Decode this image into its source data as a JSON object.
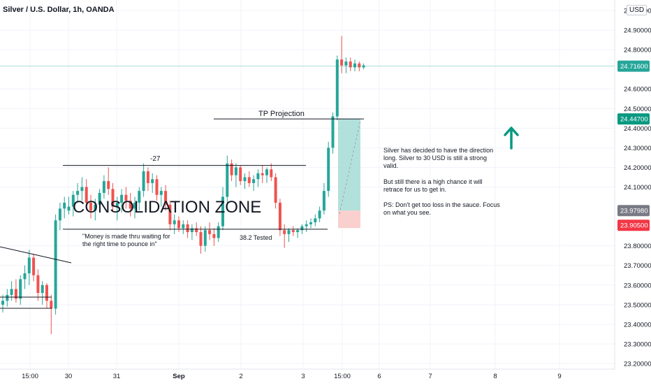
{
  "header": {
    "title": "Silver / U.S. Dollar, 1h, OANDA",
    "currency": "USD"
  },
  "price_axis": {
    "ticks": [
      "25.00000",
      "24.90000",
      "24.80000",
      "24.71600",
      "24.60000",
      "24.50000",
      "24.44700",
      "24.40000",
      "24.30000",
      "24.20000",
      "24.10000",
      "23.97980",
      "23.90500",
      "23.80000",
      "23.70000",
      "23.60000",
      "23.50000",
      "23.40000",
      "23.30000",
      "23.20000"
    ],
    "labels": [
      {
        "text": "24.71600",
        "color": "#26a69a"
      },
      {
        "text": "24.44700",
        "color": "#089981"
      },
      {
        "text": "23.97980",
        "color": "#787b86"
      },
      {
        "text": "23.90500",
        "color": "#f23645"
      }
    ]
  },
  "time_axis": {
    "ticks": [
      "15:00",
      "30",
      "31",
      "Sep",
      "2",
      "3",
      "15:00",
      "6",
      "7",
      "8",
      "9"
    ]
  },
  "annotations": {
    "consolidation": "CONSOLIDATION ZONE",
    "tp_projection": "TP Projection",
    "range_label": "-27",
    "quote": [
      "\"Money is made thru waiting for",
      "the right time to pounce in\""
    ],
    "tested": "38.2 Tested",
    "note": [
      "Silver has decided to have the direction",
      "long. Silver to 30 USD is still a strong",
      "valid.",
      "",
      "But still there is a high chance it will",
      "retrace for us to get in.",
      "",
      "PS: Don't get too loss in the sauce. Focus",
      "on what you see."
    ]
  },
  "colors": {
    "up": "#26a69a",
    "down": "#ef5350",
    "target_zone": "#a5dcd5",
    "stop_zone": "#f8c8c6",
    "arrow": "#089981"
  },
  "chart_data": {
    "type": "candlestick",
    "title": "Silver / U.S. Dollar, 1h, OANDA",
    "ylim": [
      23.2,
      25.0
    ],
    "x_ticks": [
      "15:00",
      "30",
      "31",
      "Sep",
      "2",
      "3",
      "15:00",
      "6",
      "7",
      "8",
      "9"
    ],
    "candles": [
      [
        23.5,
        23.55,
        23.46,
        23.52
      ],
      [
        23.52,
        23.58,
        23.49,
        23.55
      ],
      [
        23.55,
        23.62,
        23.52,
        23.58
      ],
      [
        23.58,
        23.63,
        23.51,
        23.53
      ],
      [
        23.53,
        23.65,
        23.5,
        23.63
      ],
      [
        23.63,
        23.7,
        23.58,
        23.66
      ],
      [
        23.66,
        23.78,
        23.6,
        23.74
      ],
      [
        23.74,
        23.76,
        23.62,
        23.65
      ],
      [
        23.65,
        23.68,
        23.52,
        23.56
      ],
      [
        23.56,
        23.62,
        23.5,
        23.6
      ],
      [
        23.6,
        23.61,
        23.48,
        23.52
      ],
      [
        23.52,
        23.55,
        23.35,
        23.48
      ],
      [
        23.48,
        23.96,
        23.45,
        23.93
      ],
      [
        23.93,
        24.02,
        23.88,
        23.99
      ],
      [
        23.99,
        24.05,
        23.94,
        24.02
      ],
      [
        23.98,
        24.05,
        23.96,
        24.0
      ],
      [
        24.0,
        24.08,
        23.95,
        24.06
      ],
      [
        24.06,
        24.12,
        24.02,
        24.08
      ],
      [
        24.08,
        24.15,
        24.03,
        24.1
      ],
      [
        24.1,
        24.14,
        24.0,
        24.02
      ],
      [
        24.02,
        24.06,
        23.94,
        23.98
      ],
      [
        23.98,
        24.04,
        23.93,
        24.01
      ],
      [
        24.01,
        24.09,
        23.98,
        24.07
      ],
      [
        24.07,
        24.16,
        24.04,
        24.13
      ],
      [
        24.13,
        24.2,
        24.06,
        24.09
      ],
      [
        24.09,
        24.12,
        23.98,
        24.0
      ],
      [
        24.0,
        24.05,
        23.93,
        24.02
      ],
      [
        24.02,
        24.09,
        23.97,
        24.06
      ],
      [
        24.06,
        24.1,
        23.99,
        24.03
      ],
      [
        24.03,
        24.07,
        23.95,
        23.99
      ],
      [
        23.99,
        24.05,
        23.94,
        24.02
      ],
      [
        24.02,
        24.1,
        23.98,
        24.08
      ],
      [
        24.08,
        24.22,
        24.05,
        24.18
      ],
      [
        24.18,
        24.2,
        24.08,
        24.12
      ],
      [
        24.12,
        24.17,
        24.07,
        24.14
      ],
      [
        24.14,
        24.16,
        24.03,
        24.06
      ],
      [
        24.06,
        24.1,
        24.0,
        24.08
      ],
      [
        24.08,
        24.11,
        23.98,
        24.01
      ],
      [
        24.01,
        24.03,
        23.88,
        23.91
      ],
      [
        23.91,
        23.96,
        23.86,
        23.93
      ],
      [
        23.93,
        23.95,
        23.87,
        23.89
      ],
      [
        23.89,
        23.93,
        23.86,
        23.91
      ],
      [
        23.91,
        23.93,
        23.84,
        23.87
      ],
      [
        23.87,
        23.91,
        23.83,
        23.89
      ],
      [
        23.89,
        23.92,
        23.85,
        23.87
      ],
      [
        23.87,
        23.9,
        23.76,
        23.8
      ],
      [
        23.8,
        23.9,
        23.77,
        23.88
      ],
      [
        23.88,
        23.92,
        23.83,
        23.86
      ],
      [
        23.86,
        23.89,
        23.8,
        23.84
      ],
      [
        23.84,
        23.92,
        23.82,
        23.9
      ],
      [
        23.9,
        24.1,
        23.88,
        24.05
      ],
      [
        24.05,
        24.26,
        24.02,
        24.22
      ],
      [
        24.22,
        24.24,
        24.13,
        24.16
      ],
      [
        24.16,
        24.22,
        24.1,
        24.2
      ],
      [
        24.2,
        24.21,
        24.11,
        24.13
      ],
      [
        24.13,
        24.17,
        24.09,
        24.15
      ],
      [
        24.15,
        24.18,
        24.1,
        24.12
      ],
      [
        24.12,
        24.16,
        24.08,
        24.14
      ],
      [
        24.14,
        24.19,
        24.1,
        24.17
      ],
      [
        24.17,
        24.21,
        24.12,
        24.16
      ],
      [
        24.16,
        24.2,
        24.12,
        24.19
      ],
      [
        24.19,
        24.22,
        24.13,
        24.15
      ],
      [
        24.15,
        24.17,
        23.99,
        24.02
      ],
      [
        24.02,
        24.04,
        23.85,
        23.88
      ],
      [
        23.88,
        23.91,
        23.79,
        23.86
      ],
      [
        23.86,
        23.89,
        23.82,
        23.88
      ],
      [
        23.88,
        23.9,
        23.85,
        23.87
      ],
      [
        23.87,
        23.89,
        23.84,
        23.88
      ],
      [
        23.88,
        23.91,
        23.86,
        23.9
      ],
      [
        23.9,
        23.93,
        23.87,
        23.91
      ],
      [
        23.91,
        23.94,
        23.89,
        23.92
      ],
      [
        23.92,
        23.96,
        23.9,
        23.94
      ],
      [
        23.94,
        24.0,
        23.92,
        23.98
      ],
      [
        23.98,
        24.12,
        23.96,
        24.08
      ],
      [
        24.08,
        24.33,
        24.05,
        24.3
      ],
      [
        24.3,
        24.48,
        24.27,
        24.46
      ],
      [
        24.46,
        24.77,
        24.44,
        24.75
      ],
      [
        24.75,
        24.87,
        24.68,
        24.72
      ],
      [
        24.72,
        24.76,
        24.68,
        24.74
      ],
      [
        24.74,
        24.76,
        24.69,
        24.71
      ],
      [
        24.71,
        24.75,
        24.69,
        24.73
      ],
      [
        24.73,
        24.74,
        24.69,
        24.71
      ],
      [
        24.71,
        24.73,
        24.7,
        24.72
      ]
    ],
    "levels": {
      "last_price": 24.716,
      "tp_projection": 24.447,
      "entry": 23.9798,
      "stop": 23.905,
      "range_top": 24.21,
      "range_bottom": 23.885
    }
  }
}
